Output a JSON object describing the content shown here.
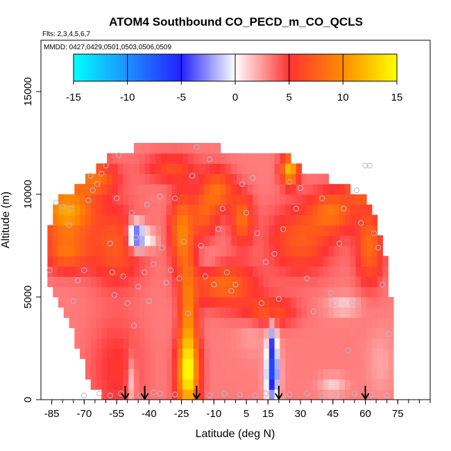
{
  "chart_data": {
    "type": "heatmap",
    "title": "ATOM4 Southbound CO_PECD_m_CO_QCLS",
    "flights_note": "Flts: 2,3,4,5,6,7",
    "dates_note": "MMDD: 0427,0429,0501,0503,0506,0509",
    "xlabel": "Latitude (deg N)",
    "ylabel": "Altitude (m)",
    "xlim": [
      -90,
      90
    ],
    "ylim": [
      0,
      17500
    ],
    "x_ticks": [
      "-85",
      "-70",
      "-55",
      "-40",
      "-25",
      "-10",
      "5",
      "15",
      "30",
      "45",
      "60",
      "75"
    ],
    "y_ticks": [
      "0",
      "5000",
      "10000",
      "15000"
    ],
    "colorbar": {
      "range": [
        -15,
        15
      ],
      "ticks": [
        "-15",
        "-10",
        "-5",
        "0",
        "5",
        "10",
        "15"
      ],
      "colors": [
        "#00ffff",
        "#1e90ff",
        "#2222ff",
        "#ffffff",
        "#ff3333",
        "#ff8c00",
        "#ffff00"
      ]
    },
    "arrows_lat": [
      -51,
      -42,
      -18,
      20,
      60
    ],
    "coverage": {
      "lat": [
        -87,
        -85,
        -80,
        -75,
        -70,
        -65,
        -60,
        -55,
        -50,
        -45,
        -40,
        -35,
        -30,
        -25,
        -20,
        -15,
        -10,
        -5,
        0,
        5,
        10,
        15,
        20,
        25,
        30,
        35,
        40,
        45,
        50,
        55,
        60,
        65,
        70,
        72
      ],
      "top": [
        6300,
        9500,
        9800,
        10100,
        10600,
        11200,
        11700,
        12000,
        12200,
        12300,
        12400,
        12400,
        12400,
        12400,
        12400,
        12400,
        12300,
        12200,
        12100,
        12100,
        12100,
        12100,
        12100,
        11900,
        11200,
        10900,
        10900,
        10600,
        10500,
        10100,
        9700,
        9000,
        6800,
        5000
      ],
      "bottom": [
        6000,
        5300,
        4400,
        3300,
        1500,
        500,
        0,
        0,
        0,
        0,
        0,
        0,
        0,
        0,
        0,
        0,
        0,
        0,
        0,
        0,
        0,
        0,
        0,
        0,
        0,
        0,
        0,
        0,
        0,
        0,
        0,
        0,
        0,
        0
      ]
    },
    "features": [
      {
        "lat": -78,
        "alt": 9200,
        "sx": 12,
        "sy": 1200,
        "v": 8
      },
      {
        "lat": -65,
        "alt": 10800,
        "sx": 10,
        "sy": 800,
        "v": 5
      },
      {
        "lat": -78,
        "alt": 7200,
        "sx": 10,
        "sy": 900,
        "v": 5
      },
      {
        "lat": -55,
        "alt": 7500,
        "sx": 12,
        "sy": 1800,
        "v": 4
      },
      {
        "lat": -46,
        "alt": 8000,
        "sx": 4,
        "sy": 700,
        "v": -9
      },
      {
        "lat": -40,
        "alt": 7800,
        "sx": 4,
        "sy": 500,
        "v": -3
      },
      {
        "lat": -55,
        "alt": 1500,
        "sx": 12,
        "sy": 2500,
        "v": 2
      },
      {
        "lat": -48,
        "alt": 900,
        "sx": 2,
        "sy": 1200,
        "v": -3
      },
      {
        "lat": -22,
        "alt": 1200,
        "sx": 5,
        "sy": 1800,
        "v": 10
      },
      {
        "lat": -22,
        "alt": 4000,
        "sx": 4,
        "sy": 2800,
        "v": 6
      },
      {
        "lat": -25,
        "alt": 8200,
        "sx": 5,
        "sy": 1800,
        "v": 6
      },
      {
        "lat": -8,
        "alt": 10200,
        "sx": 7,
        "sy": 1000,
        "v": 5
      },
      {
        "lat": -15,
        "alt": 9000,
        "sx": 6,
        "sy": 1200,
        "v": 4
      },
      {
        "lat": 3,
        "alt": 8800,
        "sx": 5,
        "sy": 1200,
        "v": 5
      },
      {
        "lat": -5,
        "alt": 5600,
        "sx": 14,
        "sy": 1000,
        "v": 5
      },
      {
        "lat": 15,
        "alt": 4300,
        "sx": 12,
        "sy": 700,
        "v": 4
      },
      {
        "lat": 30,
        "alt": 7800,
        "sx": 14,
        "sy": 1600,
        "v": 4
      },
      {
        "lat": 45,
        "alt": 9200,
        "sx": 10,
        "sy": 1000,
        "v": 5
      },
      {
        "lat": 62,
        "alt": 7500,
        "sx": 6,
        "sy": 1800,
        "v": 5
      },
      {
        "lat": 58,
        "alt": 10600,
        "sx": 6,
        "sy": 800,
        "v": 8
      },
      {
        "lat": 25,
        "alt": 11200,
        "sx": 4,
        "sy": 700,
        "v": 9
      },
      {
        "lat": -30,
        "alt": 11300,
        "sx": 12,
        "sy": 700,
        "v": 3
      },
      {
        "lat": 17,
        "alt": 1200,
        "sx": 3,
        "sy": 1400,
        "v": -9
      },
      {
        "lat": 17,
        "alt": 2800,
        "sx": 2,
        "sy": 1200,
        "v": -5
      },
      {
        "lat": 45,
        "alt": 700,
        "sx": 6,
        "sy": 500,
        "v": -2
      },
      {
        "lat": 67,
        "alt": 1800,
        "sx": 6,
        "sy": 1600,
        "v": -1
      },
      {
        "lat": 50,
        "alt": 4600,
        "sx": 8,
        "sy": 500,
        "v": -2
      },
      {
        "lat": -12,
        "alt": 6700,
        "sx": 5,
        "sy": 700,
        "v": -1
      },
      {
        "lat": 8,
        "alt": 3500,
        "sx": 7,
        "sy": 1200,
        "v": -1
      }
    ],
    "sample_points": [
      [
        -86,
        6300
      ],
      [
        -83,
        9600
      ],
      [
        -80,
        9400
      ],
      [
        -77,
        8500
      ],
      [
        -75,
        4800
      ],
      [
        -73,
        5800
      ],
      [
        -70,
        6300
      ],
      [
        -68,
        9700
      ],
      [
        -66,
        10200
      ],
      [
        -64,
        10500
      ],
      [
        -62,
        11000
      ],
      [
        -60,
        11400
      ],
      [
        -58,
        7600
      ],
      [
        -57,
        6200
      ],
      [
        -56,
        5100
      ],
      [
        -55,
        9800
      ],
      [
        -54,
        11900
      ],
      [
        -52,
        6000
      ],
      [
        -50,
        4700
      ],
      [
        -48,
        9100
      ],
      [
        -47,
        3600
      ],
      [
        -46,
        7900
      ],
      [
        -45,
        5500
      ],
      [
        -44,
        7200
      ],
      [
        -42,
        6200
      ],
      [
        -40,
        4800
      ],
      [
        -38,
        6600
      ],
      [
        -35,
        9900
      ],
      [
        -34,
        7400
      ],
      [
        -32,
        5700
      ],
      [
        -30,
        6300
      ],
      [
        -28,
        9800
      ],
      [
        -26,
        5900
      ],
      [
        -24,
        7700
      ],
      [
        -22,
        4200
      ],
      [
        -20,
        10900
      ],
      [
        -18,
        12300
      ],
      [
        -16,
        7500
      ],
      [
        -14,
        6000
      ],
      [
        -12,
        11700
      ],
      [
        -10,
        5600
      ],
      [
        -8,
        8300
      ],
      [
        -6,
        9300
      ],
      [
        -4,
        6200
      ],
      [
        -2,
        5300
      ],
      [
        0,
        5600
      ],
      [
        3,
        10500
      ],
      [
        5,
        9100
      ],
      [
        8,
        10800
      ],
      [
        10,
        8100
      ],
      [
        12,
        4700
      ],
      [
        14,
        6700
      ],
      [
        16,
        3200
      ],
      [
        18,
        7100
      ],
      [
        20,
        4900
      ],
      [
        22,
        8300
      ],
      [
        25,
        10600
      ],
      [
        28,
        9300
      ],
      [
        30,
        10300
      ],
      [
        33,
        5900
      ],
      [
        36,
        4300
      ],
      [
        40,
        9800
      ],
      [
        44,
        5200
      ],
      [
        46,
        4700
      ],
      [
        48,
        7600
      ],
      [
        50,
        9300
      ],
      [
        52,
        2400
      ],
      [
        54,
        4700
      ],
      [
        56,
        10200
      ],
      [
        58,
        8600
      ],
      [
        60,
        11400
      ],
      [
        62,
        11400
      ],
      [
        64,
        8100
      ],
      [
        66,
        7400
      ],
      [
        68,
        5600
      ],
      [
        71,
        3200
      ],
      [
        -76,
        9300
      ],
      [
        -67,
        10900
      ],
      [
        -44,
        200
      ],
      [
        -53,
        300
      ],
      [
        -63,
        300
      ],
      [
        -58,
        200
      ],
      [
        -35,
        300
      ],
      [
        -28,
        250
      ],
      [
        -12,
        200
      ],
      [
        -5,
        300
      ],
      [
        2,
        250
      ],
      [
        9,
        200
      ],
      [
        25,
        250
      ],
      [
        33,
        300
      ],
      [
        40,
        200
      ],
      [
        47,
        250
      ],
      [
        55,
        300
      ],
      [
        63,
        250
      ],
      [
        70,
        200
      ],
      [
        -70,
        200
      ],
      [
        14,
        300
      ],
      [
        22,
        150
      ],
      [
        -38,
        350
      ],
      [
        -41,
        9500
      ]
    ]
  }
}
